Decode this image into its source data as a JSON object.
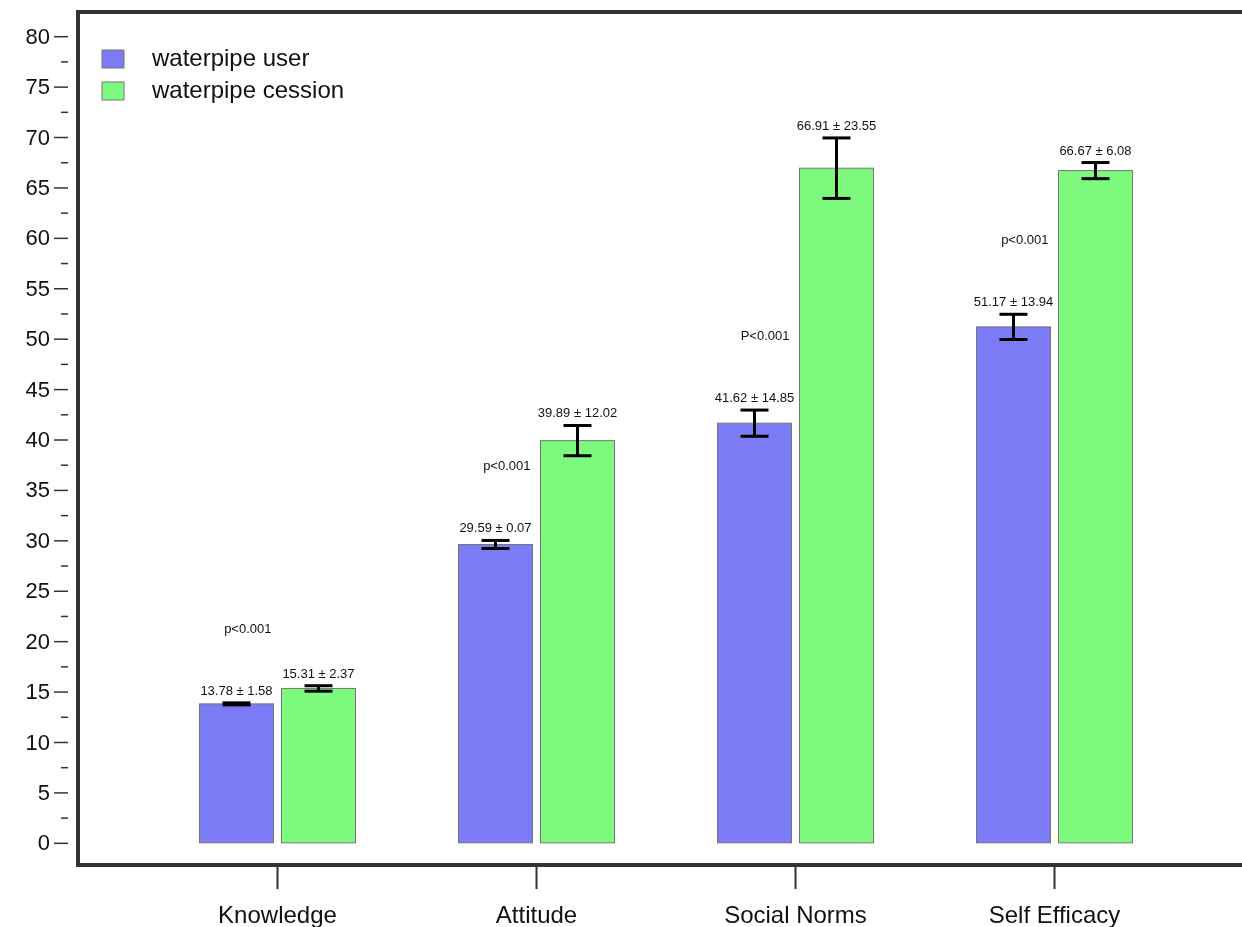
{
  "chart_data": {
    "type": "bar",
    "categories": [
      "Knowledge",
      "Attitude",
      "Social  Norms",
      "Self  Efficacy"
    ],
    "series": [
      {
        "name": "waterpipe user",
        "color": "#7b7bf5",
        "values": [
          13.78,
          29.59,
          41.62,
          51.17
        ],
        "errors": [
          0.1,
          0.4,
          1.3,
          1.25
        ],
        "value_labels": [
          "13.78 ± 1.58",
          "29.59 ± 0.07",
          "41.62 ± 14.85",
          "51.17 ± 13.94"
        ]
      },
      {
        "name": "waterpipe cession",
        "color": "#7dfa7d",
        "values": [
          15.31,
          39.89,
          66.91,
          66.67
        ],
        "errors": [
          0.27,
          1.5,
          3.0,
          0.8
        ],
        "value_labels": [
          "15.31 ± 2.37",
          "39.89 ± 12.02",
          "66.91 ± 23.55",
          "66.67 ± 6.08"
        ]
      }
    ],
    "ylim": [
      -2.2,
      82.4
    ],
    "yticks": [
      0,
      {
        "value": 2.5,
        "label": null
      },
      5,
      {
        "value": 7.5,
        "label": null
      },
      10,
      {
        "value": 12.5,
        "label": null
      },
      15,
      {
        "value": 17.5,
        "label": null
      },
      20,
      {
        "value": 22.5,
        "label": null
      },
      25,
      {
        "value": 27.5,
        "label": null
      },
      30,
      {
        "value": 32.5,
        "label": null
      },
      35,
      {
        "value": 37.5,
        "label": null
      },
      40,
      {
        "value": 42.5,
        "label": null
      },
      45,
      {
        "value": 47.5,
        "label": null
      },
      50,
      {
        "value": 52.5,
        "label": null
      },
      55,
      {
        "value": 57.5,
        "label": null
      },
      60,
      {
        "value": 62.5,
        "label": null
      },
      65,
      {
        "value": 67.5,
        "label": null
      },
      70,
      {
        "value": 72.5,
        "label": null
      },
      75,
      {
        "value": 77.5,
        "label": null
      },
      80
    ],
    "annotations": [
      "p<0.001",
      "p<0.001",
      "P<0.001",
      "p<0.001"
    ],
    "legend": "top left",
    "grid": false
  }
}
